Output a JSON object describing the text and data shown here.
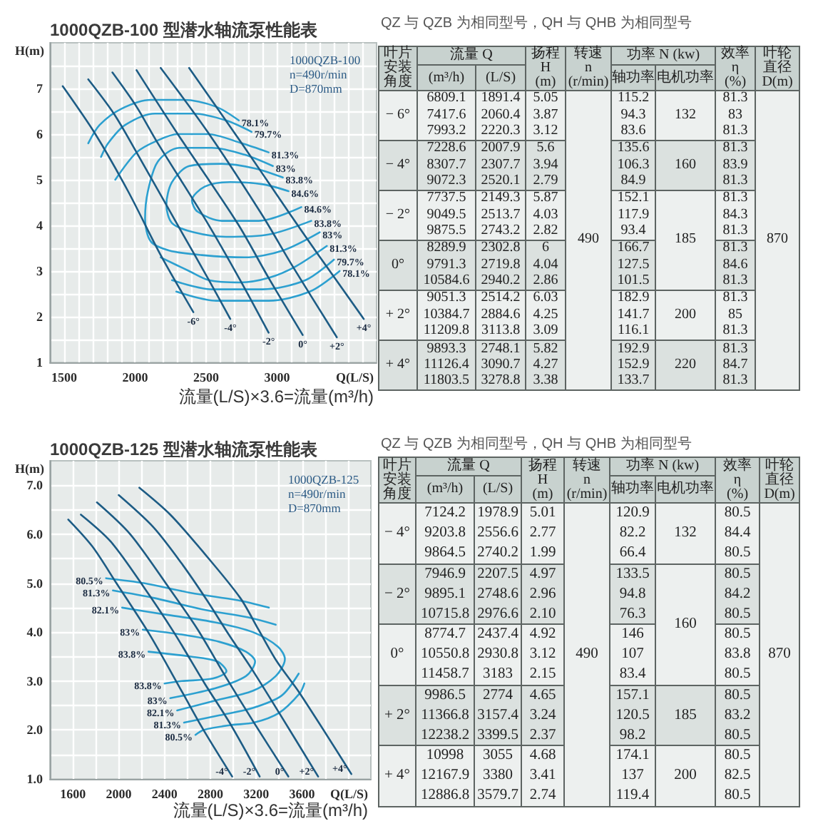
{
  "chart_data": [
    {
      "type": "line",
      "title": "1000QZB-100 型潜水轴流泵性能表",
      "xlabel": "Q(L/S)",
      "ylabel": "H(m)",
      "xlim": [
        1400,
        3700
      ],
      "ylim": [
        1,
        8
      ],
      "xticks": [
        1500,
        {
          "value": 1600,
          "label": null
        },
        {
          "value": 1700,
          "label": null
        },
        {
          "value": 1800,
          "label": null
        },
        {
          "value": 1900,
          "label": null
        },
        2000,
        {
          "value": 2100,
          "label": null
        },
        {
          "value": 2200,
          "label": null
        },
        {
          "value": 2300,
          "label": null
        },
        {
          "value": 2400,
          "label": null
        },
        2500,
        {
          "value": 2600,
          "label": null
        },
        {
          "value": 2700,
          "label": null
        },
        {
          "value": 2800,
          "label": null
        },
        {
          "value": 2900,
          "label": null
        },
        3000,
        {
          "value": 3100,
          "label": null
        },
        {
          "value": 3200,
          "label": null
        },
        {
          "value": 3300,
          "label": null
        },
        {
          "value": 3400,
          "label": null
        },
        {
          "value": 3500,
          "label": null
        },
        {
          "value": 3600,
          "label": null
        }
      ],
      "yticks": [
        1,
        {
          "value": 1.5,
          "label": null
        },
        2,
        {
          "value": 2.5,
          "label": null
        },
        3,
        {
          "value": 3.5,
          "label": null
        },
        4,
        {
          "value": 4.5,
          "label": null
        },
        5,
        {
          "value": 5.5,
          "label": null
        },
        6,
        {
          "value": 6.5,
          "label": null
        },
        7,
        {
          "value": 7.5,
          "label": null
        }
      ],
      "grid": true,
      "marker": "none",
      "series": [
        {
          "name": "-6°",
          "color": "#1d5c85",
          "x": [
            1490,
            1720,
            1950,
            2180,
            2410
          ],
          "values": [
            7.05,
            6.0,
            4.75,
            3.35,
            2.1
          ]
        },
        {
          "name": "-4°",
          "color": "#1d5c85",
          "x": [
            1670,
            1850,
            2010,
            2310,
            2520,
            2670
          ],
          "values": [
            7.2,
            6.45,
            5.6,
            3.95,
            2.8,
            1.95
          ]
        },
        {
          "name": "-2°",
          "color": "#1d5c85",
          "x": [
            1840,
            2010,
            2150,
            2510,
            2740,
            2940
          ],
          "values": [
            7.35,
            6.6,
            5.85,
            4.05,
            2.8,
            1.65
          ]
        },
        {
          "name": "0°",
          "color": "#1d5c85",
          "x": [
            2010,
            2300,
            2720,
            2940,
            3180
          ],
          "values": [
            7.4,
            6.0,
            4.05,
            2.85,
            1.6
          ]
        },
        {
          "name": "+2°",
          "color": "#1d5c85",
          "x": [
            2180,
            2510,
            2890,
            3110,
            3420
          ],
          "values": [
            7.45,
            6.05,
            4.25,
            3.1,
            1.55
          ]
        },
        {
          "name": "+4°",
          "color": "#1d5c85",
          "x": [
            2380,
            2750,
            3090,
            3280,
            3610
          ],
          "values": [
            7.45,
            5.8,
            4.25,
            3.4,
            1.95
          ]
        },
        {
          "color": "#2ca0d0",
          "x": [
            2730,
            2570,
            2340,
            2110,
            1900,
            1750,
            1670,
            null,
            2290,
            2570,
            2940,
            3230,
            3440
          ],
          "values": [
            6.3,
            6.6,
            6.75,
            6.75,
            6.55,
            6.2,
            5.8,
            null,
            2.55,
            2.35,
            2.35,
            2.55,
            3.0
          ]
        },
        {
          "color": "#2ca0d0",
          "x": [
            2820,
            2640,
            2410,
            2140,
            1930,
            1810,
            1760,
            null,
            2260,
            2540,
            2900,
            3200,
            3400
          ],
          "values": [
            6.05,
            6.3,
            6.45,
            6.45,
            6.2,
            5.8,
            5.5,
            null,
            2.8,
            2.6,
            2.6,
            2.8,
            3.25
          ]
        },
        {
          "color": "#2ca0d0",
          "x": [
            2940,
            2750,
            2510,
            2300,
            2150,
            2010,
            1860,
            null,
            2180,
            2380,
            2520,
            2740,
            2940,
            3130,
            3350
          ],
          "values": [
            5.6,
            5.8,
            6.0,
            6.0,
            5.85,
            5.6,
            5.0,
            null,
            3.3,
            3.0,
            2.8,
            2.75,
            2.85,
            3.1,
            3.55
          ]
        },
        {
          "color": "#2ca0d0",
          "x": [
            2970,
            2770,
            2540,
            2310,
            2160,
            2090,
            2070,
            2110,
            2240,
            2470,
            2770,
            3040,
            3300
          ],
          "values": [
            5.3,
            5.55,
            5.7,
            5.7,
            5.4,
            4.75,
            4.15,
            3.65,
            3.45,
            3.35,
            3.3,
            3.45,
            3.85
          ]
        },
        {
          "color": "#2ca0d0",
          "x": [
            3040,
            2840,
            2610,
            2380,
            2260,
            2220,
            2260,
            2410,
            2640,
            2940,
            3240
          ],
          "values": [
            5.05,
            5.25,
            5.35,
            5.3,
            4.95,
            4.45,
            4.05,
            3.85,
            3.75,
            3.8,
            4.1
          ]
        },
        {
          "color": "#2ca0d0",
          "x": [
            3080,
            2900,
            2670,
            2490,
            2400,
            2440,
            2610,
            2870,
            3170
          ],
          "values": [
            4.75,
            4.9,
            4.95,
            4.85,
            4.55,
            4.3,
            4.1,
            4.1,
            4.4
          ]
        }
      ],
      "annotations": [
        "1000QZB-100",
        "n=490r/min",
        "D=870mm",
        "流量(L/S)×3.6=流量(m³/h)",
        {
          "text": "78.1%",
          "x": 2730,
          "y": 6.3
        },
        {
          "text": "79.7%",
          "x": 2820,
          "y": 6.05
        },
        {
          "text": "81.3%",
          "x": 2940,
          "y": 5.6
        },
        {
          "text": "83%",
          "x": 2970,
          "y": 5.3
        },
        {
          "text": "83.8%",
          "x": 3040,
          "y": 5.05
        },
        {
          "text": "84.6%",
          "x": 3080,
          "y": 4.75
        },
        {
          "text": "84.6%",
          "x": 3170,
          "y": 4.4
        },
        {
          "text": "83.8%",
          "x": 3240,
          "y": 4.1
        },
        {
          "text": "83%",
          "x": 3300,
          "y": 3.85
        },
        {
          "text": "81.3%",
          "x": 3350,
          "y": 3.55
        },
        {
          "text": "79.7%",
          "x": 3400,
          "y": 3.25
        },
        {
          "text": "78.1%",
          "x": 3440,
          "y": 3.0
        }
      ]
    },
    {
      "type": "other",
      "title": "QZ 与 QZB 为相同型号，QH 与 QHB 为相同型号",
      "cell_labels": [
        [
          "叶片安装角度",
          "流量 Q",
          null,
          "扬程\nH\n(m)",
          "转速\nn\n(r/min)",
          "功率 N (kw)",
          null,
          "效率\nη\n(%)",
          "叶轮直径\nD(m)"
        ],
        [
          null,
          "(m³/h)",
          "(L/S)",
          null,
          null,
          "轴功率",
          "电机功率",
          null,
          null
        ],
        [
          "− 6°",
          "6809.1",
          "1891.4",
          "5.05",
          "490",
          "115.2",
          "132",
          "81.3",
          "870"
        ],
        [
          null,
          "7417.6",
          "2060.4",
          "3.87",
          null,
          "94.3",
          null,
          "83",
          null
        ],
        [
          null,
          "7993.2",
          "2220.3",
          "3.12",
          null,
          "83.6",
          null,
          "81.3",
          null
        ],
        [
          "− 4°",
          "7228.6",
          "2007.9",
          "5.6",
          null,
          "135.6",
          "160",
          "81.3",
          null
        ],
        [
          null,
          "8307.7",
          "2307.7",
          "3.94",
          null,
          "106.3",
          null,
          "83.9",
          null
        ],
        [
          null,
          "9072.3",
          "2520.1",
          "2.79",
          null,
          "84.9",
          null,
          "81.3",
          null
        ],
        [
          "− 2°",
          "7737.5",
          "2149.3",
          "5.87",
          null,
          "152.1",
          "185",
          "81.3",
          null
        ],
        [
          null,
          "9049.5",
          "2513.7",
          "4.03",
          null,
          "117.9",
          null,
          "84.3",
          null
        ],
        [
          null,
          "9875.5",
          "2743.2",
          "2.82",
          null,
          "93.4",
          null,
          "81.3",
          null
        ],
        [
          "0°",
          "8289.9",
          "2302.8",
          "6",
          null,
          "166.7",
          null,
          "81.3",
          null
        ],
        [
          null,
          "9791.3",
          "2719.8",
          "4.04",
          null,
          "127.5",
          null,
          "84.6",
          null
        ],
        [
          null,
          "10584.6",
          "2940.2",
          "2.86",
          null,
          "101.5",
          null,
          "81.3",
          null
        ],
        [
          "+ 2°",
          "9051.3",
          "2514.2",
          "6.03",
          null,
          "182.9",
          "200",
          "81.3",
          null
        ],
        [
          null,
          "10384.7",
          "2884.6",
          "4.25",
          null,
          "141.7",
          null,
          "85",
          null
        ],
        [
          null,
          "11209.8",
          "3113.8",
          "3.09",
          null,
          "116.1",
          null,
          "81.3",
          null
        ],
        [
          "+ 4°",
          "9893.3",
          "2748.1",
          "5.82",
          null,
          "192.9",
          "220",
          "81.3",
          null
        ],
        [
          null,
          "11126.4",
          "3090.7",
          "4.27",
          null,
          "152.9",
          null,
          "84.7",
          null
        ],
        [
          null,
          "11803.5",
          "3278.8",
          "3.38",
          null,
          "133.7",
          null,
          "81.3",
          null
        ]
      ]
    },
    {
      "type": "line",
      "title": "1000QZB-125 型潜水轴流泵性能表",
      "xlabel": "Q(L/S)",
      "ylabel": "H(m)",
      "xlim": [
        1400,
        4200
      ],
      "ylim": [
        1,
        7.5
      ],
      "xticks": [
        1600,
        {
          "value": 1800,
          "label": null
        },
        2000,
        {
          "value": 2200,
          "label": null
        },
        2400,
        {
          "value": 2600,
          "label": null
        },
        2800,
        {
          "value": 3000,
          "label": null
        },
        3200,
        {
          "value": 3400,
          "label": null
        },
        3600,
        {
          "value": 3800,
          "label": null
        },
        {
          "value": 4000,
          "label": null
        }
      ],
      "yticks": [
        {
          "value": 1,
          "label": "1.0"
        },
        {
          "value": 1.5,
          "label": null
        },
        {
          "value": 2,
          "label": "2.0"
        },
        {
          "value": 2.5,
          "label": null
        },
        {
          "value": 3,
          "label": "3.0"
        },
        {
          "value": 3.5,
          "label": null
        },
        {
          "value": 4,
          "label": "4.0"
        },
        {
          "value": 4.5,
          "label": null
        },
        {
          "value": 5,
          "label": "5.0"
        },
        {
          "value": 5.5,
          "label": null
        },
        {
          "value": 6,
          "label": "6.0"
        },
        {
          "value": 6.5,
          "label": null
        },
        {
          "value": 7,
          "label": "7.0"
        }
      ],
      "grid": true,
      "marker": "none",
      "series": [
        {
          "name": "-4°",
          "color": "#1d5c85",
          "x": [
            1560,
            1770,
            1980,
            2270,
            2560,
            2740,
            2990
          ],
          "values": [
            6.3,
            5.75,
            5.0,
            3.95,
            2.75,
            2.0,
            1.05
          ]
        },
        {
          "name": "-2°",
          "color": "#1d5c85",
          "x": [
            1670,
            1930,
            2210,
            2480,
            2750,
            2980,
            3230
          ],
          "values": [
            6.4,
            5.85,
            4.95,
            4.0,
            2.95,
            2.1,
            1.05
          ]
        },
        {
          "name": "0°",
          "color": "#1d5c85",
          "x": [
            1810,
            2100,
            2440,
            2690,
            2930,
            3180,
            3480
          ],
          "values": [
            6.65,
            6.0,
            4.9,
            4.05,
            3.1,
            2.15,
            1.05
          ]
        },
        {
          "name": "+2°",
          "color": "#1d5c85",
          "x": [
            2000,
            2300,
            2550,
            2770,
            2960,
            3160,
            3400,
            3740
          ],
          "values": [
            6.8,
            6.15,
            5.4,
            4.65,
            3.95,
            3.25,
            2.35,
            1.05
          ]
        },
        {
          "name": "+4°",
          "color": "#1d5c85",
          "x": [
            2180,
            2450,
            2750,
            3060,
            3220,
            3380,
            3580,
            4030
          ],
          "values": [
            6.95,
            6.4,
            5.6,
            4.7,
            4.05,
            3.4,
            2.75,
            1.1
          ]
        },
        {
          "color": "#2ca0d0",
          "x": [
            1890,
            2220,
            2630,
            3040,
            3310,
            null,
            2670,
            2740,
            2980,
            3180,
            3400,
            3580,
            3620
          ],
          "values": [
            5.1,
            5.0,
            4.8,
            4.65,
            4.5,
            null,
            1.9,
            2.0,
            2.1,
            2.15,
            2.35,
            2.75,
            2.95
          ]
        },
        {
          "color": "#2ca0d0",
          "x": [
            1950,
            2300,
            2760,
            3130,
            3370,
            null,
            2570,
            2880,
            3170,
            3420,
            3570
          ],
          "values": [
            4.85,
            4.7,
            4.45,
            4.3,
            4.15,
            null,
            2.15,
            2.3,
            2.45,
            2.7,
            3.15
          ]
        },
        {
          "color": "#2ca0d0",
          "x": [
            2030,
            2430,
            2840,
            3170,
            3390,
            3450,
            3370,
            3170,
            2840,
            2510
          ],
          "values": [
            4.5,
            4.35,
            4.2,
            4.0,
            3.7,
            3.45,
            3.1,
            2.8,
            2.6,
            2.4
          ]
        },
        {
          "color": "#2ca0d0",
          "x": [
            2210,
            2550,
            2880,
            3110,
            3190,
            3110,
            2840,
            2450
          ],
          "values": [
            4.05,
            3.95,
            3.8,
            3.6,
            3.4,
            3.1,
            2.85,
            2.65
          ]
        },
        {
          "color": "#2ca0d0",
          "x": [
            2260,
            2630,
            2860,
            2940,
            2820,
            2550,
            2400
          ],
          "values": [
            3.6,
            3.5,
            3.4,
            3.2,
            3.05,
            3.0,
            2.95
          ]
        }
      ],
      "annotations": [
        "1000QZB-125",
        "n=490r/min",
        "D=870mm",
        "流量(L/S)×3.6=流量(m³/h)",
        {
          "text": "80.5%",
          "x": 1890,
          "y": 5.1
        },
        {
          "text": "81.3%",
          "x": 1950,
          "y": 4.85
        },
        {
          "text": "82.1%",
          "x": 2030,
          "y": 4.5
        },
        {
          "text": "83%",
          "x": 2210,
          "y": 4.05
        },
        {
          "text": "83.8%",
          "x": 2260,
          "y": 3.6
        },
        {
          "text": "83.8%",
          "x": 2400,
          "y": 2.95
        },
        {
          "text": "83%",
          "x": 2450,
          "y": 2.65
        },
        {
          "text": "82.1%",
          "x": 2510,
          "y": 2.4
        },
        {
          "text": "81.3%",
          "x": 2570,
          "y": 2.15
        },
        {
          "text": "80.5%",
          "x": 2670,
          "y": 1.9
        }
      ]
    },
    {
      "type": "other",
      "title": "QZ 与 QZB 为相同型号，QH 与 QHB 为相同型号",
      "cell_labels": [
        [
          "叶片安装角度",
          "流量 Q",
          null,
          "扬程\nH\n(m)",
          "转速\nn\n(r/min)",
          "功率 N (kw)",
          null,
          "效率\nη\n(%)",
          "叶轮直径\nD(m)"
        ],
        [
          null,
          "(m³/h)",
          "(L/S)",
          null,
          null,
          "轴功率",
          "电机功率",
          null,
          null
        ],
        [
          "− 4°",
          "7124.2",
          "1978.9",
          "5.01",
          "490",
          "120.9",
          "132",
          "80.5",
          "870"
        ],
        [
          null,
          "9203.8",
          "2556.6",
          "2.77",
          null,
          "82.2",
          null,
          "84.4",
          null
        ],
        [
          null,
          "9864.5",
          "2740.2",
          "1.99",
          null,
          "66.4",
          null,
          "80.5",
          null
        ],
        [
          "− 2°",
          "7946.9",
          "2207.5",
          "4.97",
          null,
          "133.5",
          "160",
          "80.5",
          null
        ],
        [
          null,
          "9895.1",
          "2748.6",
          "2.96",
          null,
          "94.8",
          null,
          "84.2",
          null
        ],
        [
          null,
          "10715.8",
          "2976.6",
          "2.10",
          null,
          "76.3",
          null,
          "80.5",
          null
        ],
        [
          "0°",
          "8774.7",
          "2437.4",
          "4.92",
          null,
          "146",
          null,
          "80.5",
          null
        ],
        [
          null,
          "10550.8",
          "2930.8",
          "3.12",
          null,
          "107",
          null,
          "83.8",
          null
        ],
        [
          null,
          "11458.7",
          "3183",
          "2.15",
          null,
          "83.4",
          null,
          "80.5",
          null
        ],
        [
          "+ 2°",
          "9986.5",
          "2774",
          "4.65",
          null,
          "157.1",
          "185",
          "80.5",
          null
        ],
        [
          null,
          "11366.8",
          "3157.4",
          "3.24",
          null,
          "120.5",
          null,
          "83.2",
          null
        ],
        [
          null,
          "12238.2",
          "3399.5",
          "2.37",
          null,
          "98.2",
          null,
          "80.5",
          null
        ],
        [
          "+ 4°",
          "10998",
          "3055",
          "4.68",
          null,
          "174.1",
          "200",
          "80.5",
          null
        ],
        [
          null,
          "12167.9",
          "3380",
          "3.41",
          null,
          "137",
          null,
          "82.5",
          null
        ],
        [
          null,
          "12886.8",
          "3579.7",
          "2.74",
          null,
          "119.4",
          null,
          "80.5",
          null
        ]
      ]
    }
  ]
}
